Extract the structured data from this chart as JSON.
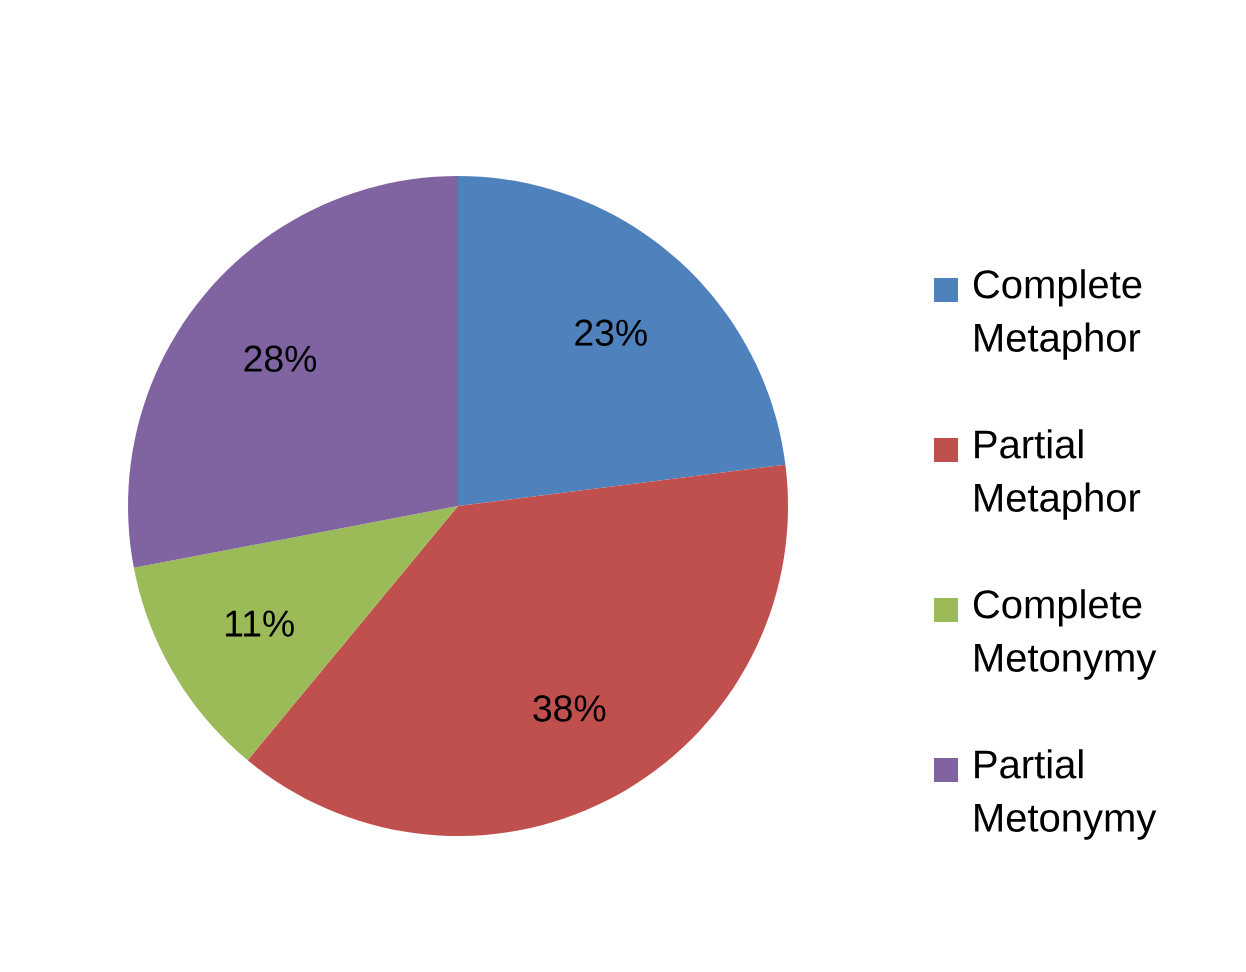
{
  "chart_data": {
    "type": "pie",
    "categories": [
      "Complete Metaphor",
      "Partial Metaphor",
      "Complete Metonymy",
      "Partial Metonymy"
    ],
    "values": [
      23,
      38,
      11,
      28
    ],
    "colors": [
      "#4f81bd",
      "#c0504d",
      "#9bbb59",
      "#8064a2"
    ],
    "value_labels": [
      "23%",
      "38%",
      "11%",
      "28%"
    ],
    "legend": "right"
  }
}
